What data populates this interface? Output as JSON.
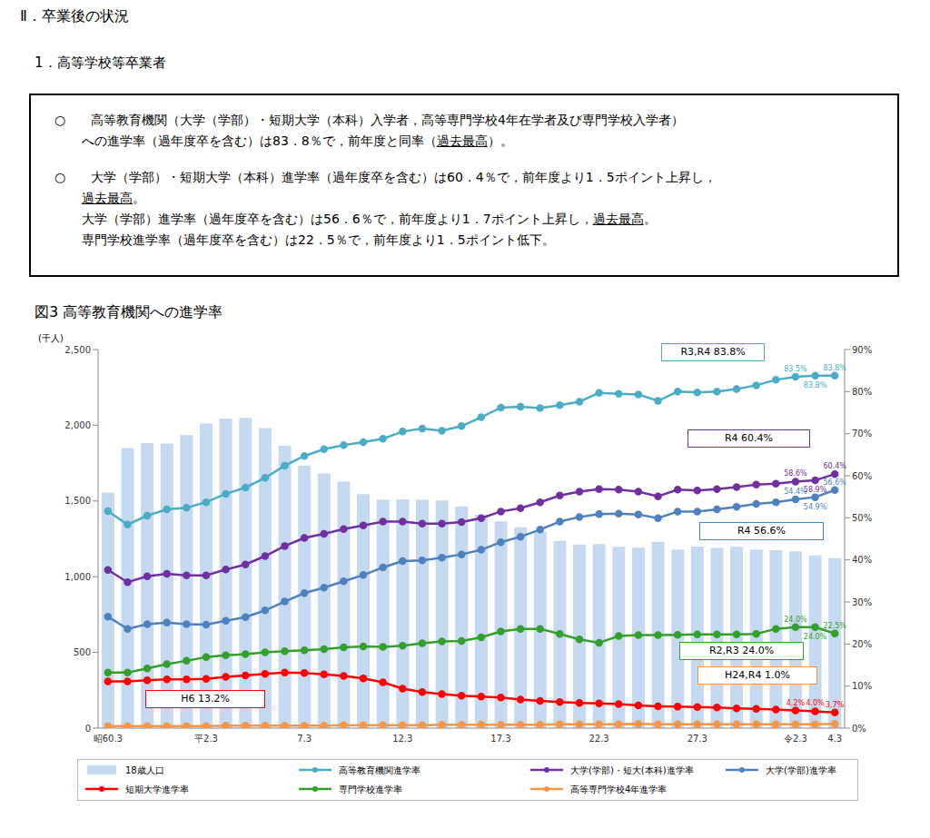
{
  "header": {
    "section": "Ⅱ．卒業後の状況",
    "subsection": "1．高等学校等卒業者"
  },
  "summary": {
    "bullet": "○",
    "items": [
      [
        [
          "高等教育機関（大学（学部）・短期大学（本科）入学者，高等専門学校4年在学者及び専門学校入学者）"
        ],
        [
          "への進学率（過年度卒を含む）は83．8％で，前年度と同率（",
          {
            "text": "過去最高",
            "underline": true
          },
          "）。"
        ]
      ],
      [
        [
          "大学（学部）・短期大学（本科）進学率（過年度卒を含む）は60．4％で，前年度より1．5ポイント上昇し，"
        ],
        [
          {
            "text": "過去最高",
            "underline": true
          },
          "。"
        ],
        [
          "大学（学部）進学率（過年度卒を含む）は56．6％で，前年度より1．7ポイント上昇し，",
          {
            "text": "過去最高",
            "underline": true
          },
          "。"
        ],
        [
          "専門学校進学率（過年度卒を含む）は22．5％で，前年度より1．5ポイント低下。"
        ]
      ]
    ]
  },
  "figure_title": "図3 高等教育機関への進学率",
  "chart_data": {
    "type": "bar",
    "y_label": "(千人)",
    "legend": "bottom",
    "grid": false,
    "data_labels": true,
    "categories": [
      "昭60.3",
      null,
      null,
      null,
      null,
      "平2.3",
      null,
      null,
      null,
      null,
      "7.3",
      null,
      null,
      null,
      null,
      "12.3",
      null,
      null,
      null,
      null,
      "17.3",
      null,
      null,
      null,
      null,
      "22.3",
      null,
      null,
      null,
      null,
      "27.3",
      null,
      null,
      null,
      null,
      "令2.3",
      null,
      "4.3"
    ],
    "ylim": [
      0,
      2500
    ],
    "yticks": [
      0,
      500,
      {
        "value": 1000,
        "label": "1,000"
      },
      {
        "value": 1500,
        "label": "1,500"
      },
      {
        "value": 2000,
        "label": "2,000"
      },
      {
        "value": 2500,
        "label": "2,500"
      }
    ],
    "y2lim": [
      0,
      90
    ],
    "y2ticks": [
      {
        "value": 0,
        "label": "0%"
      },
      {
        "value": 10,
        "label": "10%"
      },
      {
        "value": 20,
        "label": "20%"
      },
      {
        "value": 30,
        "label": "30%"
      },
      {
        "value": 40,
        "label": "40%"
      },
      {
        "value": 50,
        "label": "50%"
      },
      {
        "value": 60,
        "label": "60%"
      },
      {
        "value": 70,
        "label": "70%"
      },
      {
        "value": 80,
        "label": "80%"
      },
      {
        "value": 90,
        "label": "90%"
      }
    ],
    "series": [
      {
        "name": "18歳人口",
        "type": "bar",
        "color": "#c5d9f1",
        "values": [
          1556,
          1849,
          1882,
          1880,
          1935,
          2011,
          2044,
          2049,
          1981,
          1864,
          1733,
          1681,
          1628,
          1545,
          1510,
          1511,
          1510,
          1503,
          1465,
          1411,
          1366,
          1326,
          1300,
          1237,
          1212,
          1215,
          1197,
          1191,
          1231,
          1180,
          1199,
          1190,
          1198,
          1180,
          1175,
          1167,
          1141,
          1122
        ]
      },
      {
        "name": "高等教育機関進学率",
        "type": "line",
        "axis": "y2",
        "marker": "circle",
        "color": "#4bacc6",
        "values": [
          51.6,
          48.4,
          50.5,
          52.0,
          52.4,
          53.7,
          55.7,
          57.2,
          59.5,
          62.4,
          64.7,
          66.3,
          67.3,
          68.0,
          68.8,
          70.5,
          71.2,
          70.7,
          71.8,
          73.9,
          76.2,
          76.4,
          76.1,
          76.8,
          77.6,
          79.7,
          79.5,
          79.3,
          77.8,
          80.0,
          79.8,
          80.0,
          80.6,
          81.5,
          82.8,
          83.5,
          83.8,
          83.8
        ],
        "value_labels": [
          null,
          null,
          null,
          null,
          null,
          null,
          null,
          null,
          null,
          null,
          null,
          null,
          null,
          null,
          null,
          null,
          null,
          null,
          null,
          null,
          null,
          null,
          null,
          null,
          null,
          null,
          null,
          null,
          null,
          null,
          null,
          null,
          null,
          null,
          null,
          "83.5%",
          "83.8%",
          "83.8%"
        ]
      },
      {
        "name": "大学(学部)・短大(本科)進学率",
        "type": "line",
        "axis": "y2",
        "marker": "circle",
        "color": "#7030a0",
        "values": [
          37.6,
          34.7,
          36.1,
          36.7,
          36.3,
          36.3,
          37.7,
          38.9,
          40.9,
          43.3,
          45.2,
          46.2,
          47.3,
          48.2,
          49.1,
          49.1,
          48.6,
          48.6,
          49.0,
          49.9,
          51.5,
          52.3,
          53.7,
          55.3,
          56.2,
          56.8,
          56.7,
          56.2,
          55.1,
          56.7,
          56.5,
          56.8,
          57.3,
          57.9,
          58.1,
          58.6,
          58.9,
          60.4
        ],
        "value_labels": [
          null,
          null,
          null,
          null,
          null,
          null,
          null,
          null,
          null,
          null,
          null,
          null,
          null,
          null,
          null,
          null,
          null,
          null,
          null,
          null,
          null,
          null,
          null,
          null,
          null,
          null,
          null,
          null,
          null,
          null,
          null,
          null,
          null,
          null,
          null,
          "58.6%",
          "58.9%",
          "60.4%"
        ]
      },
      {
        "name": "大学(学部)進学率",
        "type": "line",
        "axis": "y2",
        "marker": "circle",
        "color": "#4f81bd",
        "values": [
          26.5,
          23.6,
          24.7,
          25.1,
          24.7,
          24.6,
          25.5,
          26.4,
          28.0,
          30.1,
          32.1,
          33.4,
          34.9,
          36.4,
          38.2,
          39.7,
          39.9,
          40.5,
          41.3,
          42.4,
          44.2,
          45.5,
          47.2,
          49.1,
          50.2,
          50.9,
          51.0,
          50.8,
          49.9,
          51.5,
          51.5,
          52.0,
          52.6,
          53.3,
          53.7,
          54.4,
          54.9,
          56.6
        ],
        "value_labels": [
          null,
          null,
          null,
          null,
          null,
          null,
          null,
          null,
          null,
          null,
          null,
          null,
          null,
          null,
          null,
          null,
          null,
          null,
          null,
          null,
          null,
          null,
          null,
          null,
          null,
          null,
          null,
          null,
          null,
          null,
          null,
          null,
          null,
          null,
          null,
          "54.4%",
          "54.9%",
          "56.6%"
        ]
      },
      {
        "name": "短期大学進学率",
        "type": "line",
        "axis": "y2",
        "marker": "circle",
        "color": "#ff0000",
        "values": [
          11.1,
          11.1,
          11.4,
          11.6,
          11.6,
          11.7,
          12.2,
          12.5,
          12.9,
          13.2,
          13.1,
          12.8,
          12.4,
          11.8,
          10.9,
          9.4,
          8.6,
          8.1,
          7.7,
          7.5,
          7.3,
          6.8,
          6.5,
          6.2,
          6.0,
          5.9,
          5.7,
          5.4,
          5.2,
          5.1,
          5.0,
          4.9,
          4.7,
          4.6,
          4.4,
          4.2,
          4.0,
          3.7
        ],
        "value_labels": [
          null,
          null,
          null,
          null,
          null,
          null,
          null,
          null,
          null,
          null,
          null,
          null,
          null,
          null,
          null,
          null,
          null,
          null,
          null,
          null,
          null,
          null,
          null,
          null,
          null,
          null,
          null,
          null,
          null,
          null,
          null,
          null,
          null,
          null,
          null,
          "4.2%",
          "4.0%",
          "3.7%"
        ]
      },
      {
        "name": "専門学校進学率",
        "type": "line",
        "axis": "y2",
        "marker": "circle",
        "color": "#33a02c",
        "values": [
          13.2,
          13.2,
          14.2,
          15.2,
          16.0,
          16.9,
          17.3,
          17.6,
          18.0,
          18.3,
          18.5,
          18.8,
          19.2,
          19.4,
          19.3,
          19.6,
          20.2,
          20.6,
          20.7,
          21.6,
          23.0,
          23.6,
          23.6,
          22.4,
          21.1,
          20.3,
          21.9,
          22.1,
          22.1,
          22.2,
          22.3,
          22.3,
          22.3,
          22.4,
          23.6,
          24.0,
          24.0,
          22.5
        ],
        "value_labels": [
          null,
          null,
          null,
          null,
          null,
          null,
          null,
          null,
          null,
          null,
          null,
          null,
          null,
          null,
          null,
          null,
          null,
          null,
          null,
          null,
          null,
          null,
          null,
          null,
          null,
          null,
          null,
          null,
          null,
          null,
          null,
          null,
          null,
          null,
          null,
          "24.0%",
          "24.0%",
          "22.5%"
        ]
      },
      {
        "name": "高等専門学校4年進学率",
        "type": "line",
        "axis": "y2",
        "marker": "circle",
        "color": "#f79646",
        "values": [
          0.5,
          0.5,
          0.5,
          0.5,
          0.5,
          0.5,
          0.6,
          0.6,
          0.6,
          0.6,
          0.6,
          0.6,
          0.7,
          0.7,
          0.7,
          0.7,
          0.7,
          0.8,
          0.8,
          0.8,
          0.8,
          0.8,
          0.8,
          0.9,
          0.9,
          0.9,
          0.9,
          1.0,
          0.9,
          0.9,
          0.9,
          0.9,
          0.9,
          0.9,
          0.9,
          0.9,
          0.9,
          1.0
        ]
      }
    ],
    "annotations": [
      {
        "text": "R3,R4 83.8%",
        "color": "#4bacc6"
      },
      {
        "text": "R4 60.4%",
        "color": "#7030a0"
      },
      {
        "text": "R4 56.6%",
        "color": "#4f81bd"
      },
      {
        "text": "R2,R3 24.0%",
        "color": "#33a02c"
      },
      {
        "text": "H24,R4 1.0%",
        "color": "#f79646"
      },
      {
        "text": "H6 13.2%",
        "color": "#ff0000"
      }
    ]
  }
}
